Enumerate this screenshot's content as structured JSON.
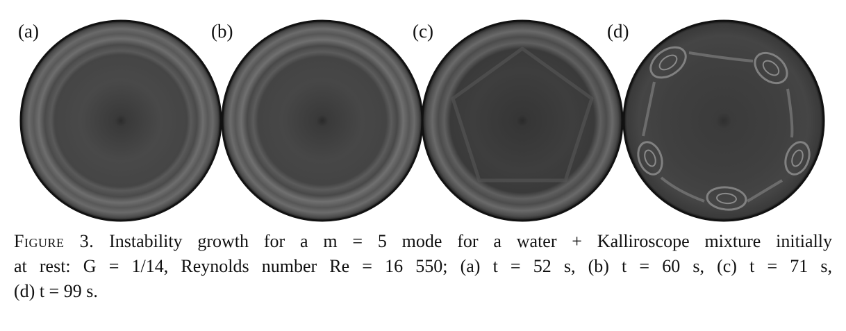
{
  "panels": [
    {
      "label": "(a)",
      "letter": "a"
    },
    {
      "label": "(b)",
      "letter": "b"
    },
    {
      "label": "(c)",
      "letter": "c"
    },
    {
      "label": "(d)",
      "letter": "d"
    }
  ],
  "caption": {
    "figure_label": "Figure 3.",
    "line1": "Instability growth for a m = 5 mode for a water + Kalliroscope mixture initially",
    "line2": "at rest: G = 1/14, Reynolds number Re = 16 550; (a) t = 52 s, (b) t = 60 s, (c) t = 71 s,",
    "line3": "(d) t = 99 s."
  }
}
